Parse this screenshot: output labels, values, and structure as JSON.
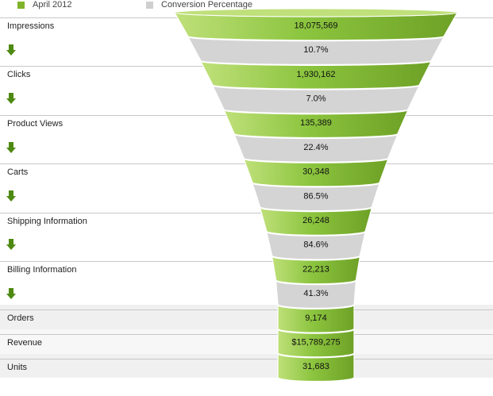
{
  "legend": [
    {
      "label": "April 2012",
      "color": "#7fb32a"
    },
    {
      "label": "Conversion Percentage",
      "color": "#cfcfcf"
    }
  ],
  "colors": {
    "stage_fill": "#8cc53f",
    "stage_dark": "#6ea126",
    "stage_light": "#bfe07a",
    "conversion_fill": "#d4d4d4",
    "arrow": "#4e8a12",
    "summary_band": "#f0f0f0"
  },
  "chart_data": {
    "type": "funnel",
    "stages": [
      {
        "name": "Impressions",
        "value": "18,075,569"
      },
      {
        "name": "Clicks",
        "value": "1,930,162"
      },
      {
        "name": "Product Views",
        "value": "135,389"
      },
      {
        "name": "Carts",
        "value": "30,348"
      },
      {
        "name": "Shipping Information",
        "value": "26,248"
      },
      {
        "name": "Billing Information",
        "value": "22,213"
      },
      {
        "name": "Orders",
        "value": "9,174"
      }
    ],
    "conversions": [
      "10.7%",
      "7.0%",
      "22.4%",
      "86.5%",
      "84.6%",
      "41.3%"
    ],
    "summary": [
      {
        "name": "Revenue",
        "value": "$15,789,275"
      },
      {
        "name": "Units",
        "value": "31,683"
      }
    ]
  }
}
